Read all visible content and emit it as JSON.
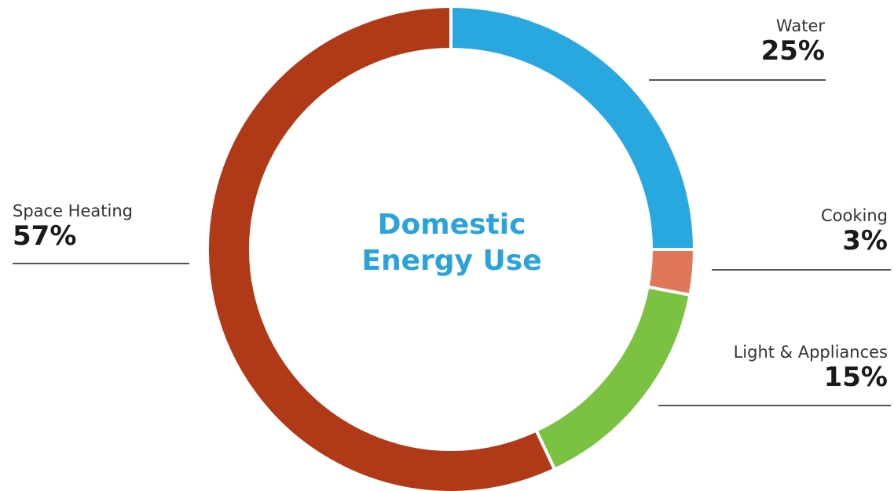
{
  "chart_data": {
    "type": "pie",
    "variant": "donut",
    "title_lines": [
      "Domestic",
      "Energy Use"
    ],
    "unit": "%",
    "slices": [
      {
        "label": "Water",
        "value": 25,
        "display": "25%",
        "color": "#29a8e0"
      },
      {
        "label": "Cooking",
        "value": 3,
        "display": "3%",
        "color": "#e0765a"
      },
      {
        "label": "Light & Appliances",
        "value": 15,
        "display": "15%",
        "color": "#7cc242"
      },
      {
        "label": "Space Heating",
        "value": 57,
        "display": "57%",
        "color": "#b03a17"
      }
    ],
    "legend": "callouts",
    "title_color": "#2aa3dd"
  }
}
